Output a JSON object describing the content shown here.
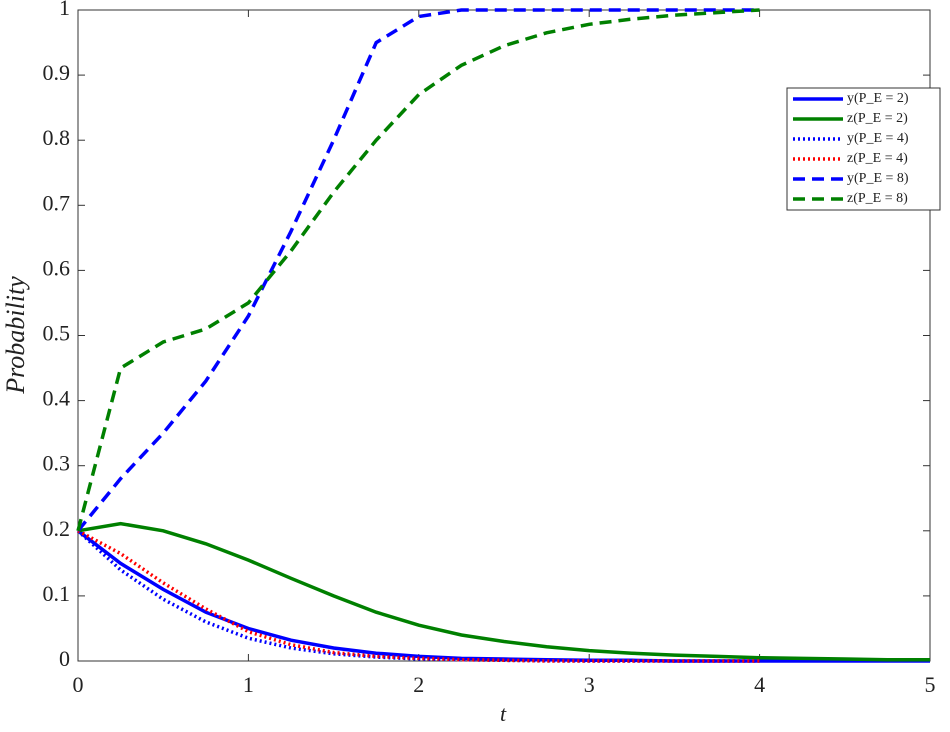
{
  "chart_data": {
    "type": "line",
    "x_label": "t",
    "y_label": "Probability",
    "x": [
      0,
      0.25,
      0.5,
      0.75,
      1,
      1.25,
      1.5,
      1.75,
      2,
      2.25,
      2.5,
      2.75,
      3,
      3.25,
      3.5,
      3.75,
      4,
      4.25,
      4.5,
      4.75,
      5
    ],
    "series": [
      {
        "name": "y(P_E = 2)",
        "color": "#0000ff",
        "dash": "solid",
        "values": [
          0.2,
          0.15,
          0.11,
          0.075,
          0.05,
          0.032,
          0.02,
          0.012,
          0.007,
          0.004,
          0.003,
          0.002,
          0.001,
          0.001,
          0,
          0,
          0,
          0,
          0,
          0,
          0
        ]
      },
      {
        "name": "z(P_E = 2)",
        "color": "#008000",
        "dash": "solid",
        "values": [
          0.2,
          0.211,
          0.2,
          0.18,
          0.155,
          0.127,
          0.1,
          0.075,
          0.055,
          0.04,
          0.03,
          0.022,
          0.016,
          0.012,
          0.009,
          0.007,
          0.005,
          0.004,
          0.003,
          0.002,
          0.002
        ]
      },
      {
        "name": "y(P_E = 4)",
        "color": "#0000ff",
        "dash": "dotted",
        "values": [
          0.2,
          0.14,
          0.095,
          0.06,
          0.035,
          0.02,
          0.011,
          0.006,
          0.003,
          0.002,
          0.001,
          0.0005,
          0,
          0,
          0,
          0,
          0,
          null,
          null,
          null,
          null
        ]
      },
      {
        "name": "z(P_E = 4)",
        "color": "#ff0000",
        "dash": "dotted",
        "values": [
          0.2,
          0.165,
          0.12,
          0.08,
          0.045,
          0.025,
          0.013,
          0.007,
          0.004,
          0.002,
          0.001,
          0,
          0,
          0,
          0,
          0,
          0,
          null,
          null,
          null,
          null
        ]
      },
      {
        "name": "y(P_E = 8)",
        "color": "#0000ff",
        "dash": "dashed",
        "values": [
          0.2,
          0.28,
          0.35,
          0.43,
          0.53,
          0.66,
          0.8,
          0.95,
          0.99,
          1,
          1,
          1,
          1,
          1,
          1,
          1,
          1,
          null,
          null,
          null,
          null
        ]
      },
      {
        "name": "z(P_E = 8)",
        "color": "#008000",
        "dash": "dashed",
        "values": [
          0.2,
          0.45,
          0.49,
          0.51,
          0.55,
          0.63,
          0.72,
          0.8,
          0.87,
          0.915,
          0.945,
          0.965,
          0.978,
          0.986,
          0.992,
          0.996,
          1,
          null,
          null,
          null,
          null
        ]
      }
    ],
    "xlim": [
      0,
      5
    ],
    "xticks": [
      0,
      1,
      2,
      3,
      4,
      5
    ],
    "ylim": [
      0,
      1
    ],
    "yticks": [
      0,
      0.1,
      0.2,
      0.3,
      0.4,
      0.5,
      0.6,
      0.7,
      0.8,
      0.9,
      1
    ],
    "legend": "top-right"
  }
}
